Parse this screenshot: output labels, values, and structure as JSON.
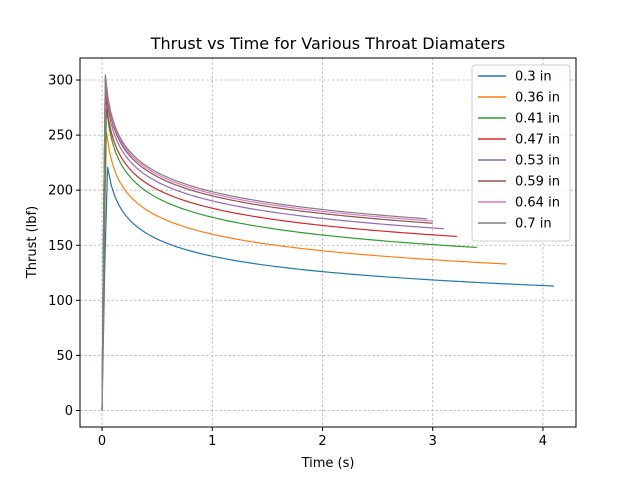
{
  "chart_data": {
    "type": "line",
    "title": "Thrust vs Time for Various Throat Diamaters",
    "xlabel": "Time (s)",
    "ylabel": "Thrust (lbf)",
    "xlim": [
      -0.2,
      4.3
    ],
    "ylim": [
      -15,
      320
    ],
    "xticks": [
      0,
      1,
      2,
      3,
      4
    ],
    "yticks": [
      0,
      50,
      100,
      150,
      200,
      250,
      300
    ],
    "grid": true,
    "legend_position": "top-right",
    "series": [
      {
        "name": "0.3 in",
        "color": "#1f77b4",
        "peak_t": 0.05,
        "peak": 221,
        "end_t": 4.1,
        "end": 113
      },
      {
        "name": "0.36 in",
        "color": "#ff7f0e",
        "peak_t": 0.04,
        "peak": 253,
        "end_t": 3.67,
        "end": 133
      },
      {
        "name": "0.41 in",
        "color": "#2ca02c",
        "peak_t": 0.04,
        "peak": 274,
        "end_t": 3.4,
        "end": 148
      },
      {
        "name": "0.47 in",
        "color": "#d62728",
        "peak_t": 0.03,
        "peak": 288,
        "end_t": 3.22,
        "end": 158
      },
      {
        "name": "0.53 in",
        "color": "#9467bd",
        "peak_t": 0.03,
        "peak": 296,
        "end_t": 3.1,
        "end": 165
      },
      {
        "name": "0.59 in",
        "color": "#8c564b",
        "peak_t": 0.03,
        "peak": 301,
        "end_t": 3.0,
        "end": 170
      },
      {
        "name": "0.64 in",
        "color": "#e377c2",
        "peak_t": 0.03,
        "peak": 303,
        "end_t": 3.0,
        "end": 172
      },
      {
        "name": "0.7 in",
        "color": "#7f7f7f",
        "peak_t": 0.03,
        "peak": 305,
        "end_t": 2.95,
        "end": 174
      }
    ]
  }
}
